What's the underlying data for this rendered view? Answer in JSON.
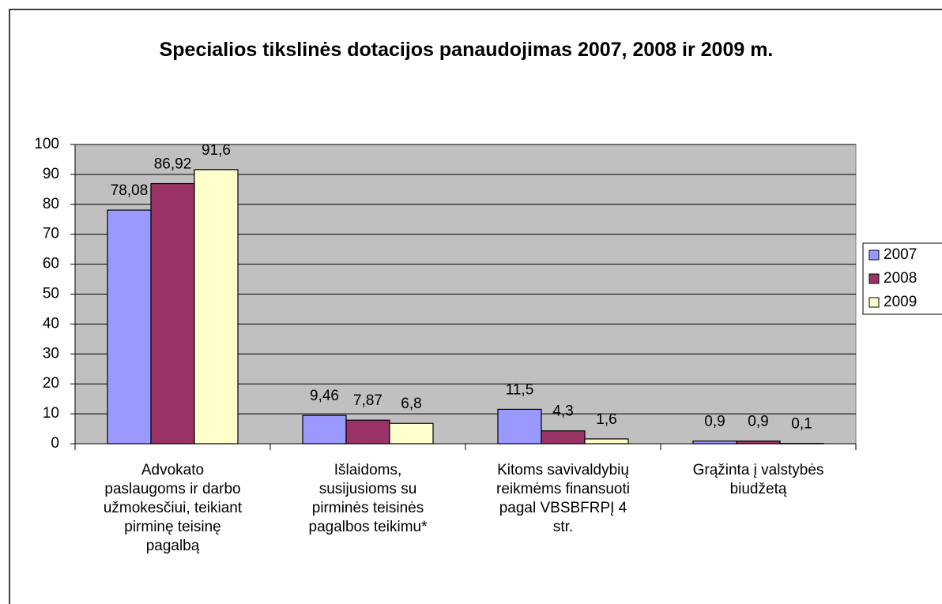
{
  "chart_data": {
    "type": "bar",
    "title": "Specialios tikslinės dotacijos panaudojimas 2007, 2008 ir 2009 m.",
    "categories": [
      "Advokato paslaugoms ir darbo užmokesčiui, teikiant pirminę teisinę pagalbą",
      "Išlaidoms, susijusioms su pirminės teisinės pagalbos teikimu*",
      "Kitoms savivaldybių reikmėms finansuoti pagal VBSBFRPĮ 4 str.",
      "Grąžinta į valstybės biudžetą"
    ],
    "series": [
      {
        "name": "2007",
        "color": "#9999ff",
        "values": [
          78.08,
          9.46,
          11.5,
          0.9
        ],
        "value_labels": [
          "78,08",
          "9,46",
          "11,5",
          "0,9"
        ]
      },
      {
        "name": "2008",
        "color": "#993366",
        "values": [
          86.92,
          7.87,
          4.3,
          0.9
        ],
        "value_labels": [
          "86,92",
          "7,87",
          "4,3",
          "0,9"
        ]
      },
      {
        "name": "2009",
        "color": "#ffffcc",
        "values": [
          91.6,
          6.8,
          1.6,
          0.1
        ],
        "value_labels": [
          "91,6",
          "6,8",
          "1,6",
          "0,1"
        ]
      }
    ],
    "ylim": [
      0,
      100
    ],
    "yticks": [
      0,
      10,
      20,
      30,
      40,
      50,
      60,
      70,
      80,
      90,
      100
    ],
    "grid": true,
    "legend": "right"
  }
}
